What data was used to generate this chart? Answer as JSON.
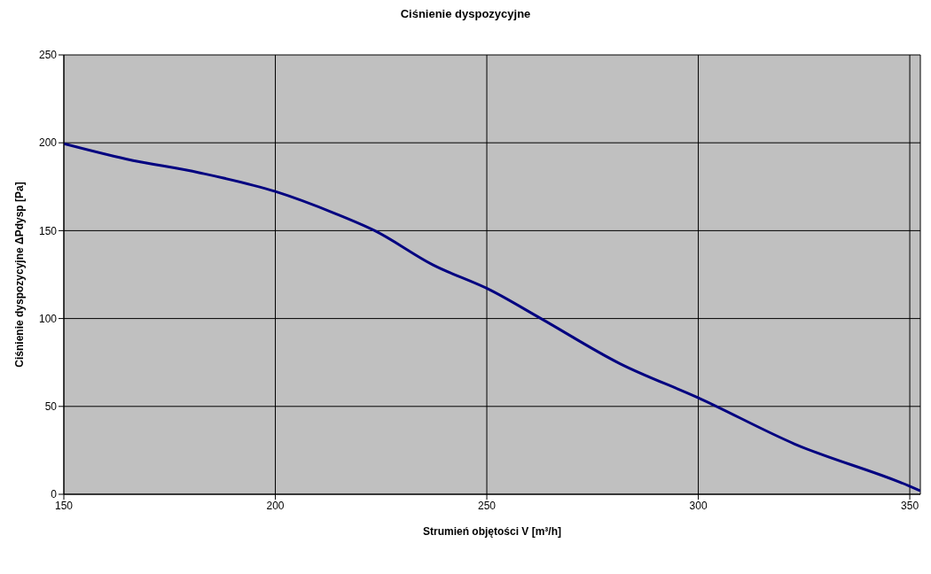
{
  "chart_data": {
    "type": "line",
    "title": "Ciśnienie dyspozycyjne",
    "xlabel": "Strumień objętości V [m³/h]",
    "ylabel": "Ciśnienie dyspozycyjne ΔPdysp [Pa]",
    "x": [
      150,
      164.7,
      182,
      200,
      213.9,
      223.5,
      237.2,
      251,
      262.8,
      281.5,
      300,
      322.8,
      350.2,
      352.5
    ],
    "series": [
      {
        "color": "#000080",
        "values": [
          199.5,
          190.8,
          183,
          172.3,
          160,
          150,
          130.6,
          116,
          100,
          74.3,
          54.9,
          28.6,
          4.4,
          2
        ]
      }
    ],
    "xlim": [
      150,
      352.5
    ],
    "xticks": [
      150,
      200,
      250,
      300,
      350
    ],
    "ylim": [
      0,
      250
    ],
    "yticks": [
      0,
      50,
      100,
      150,
      200,
      250
    ],
    "grid": true,
    "legend": false,
    "marker": "none",
    "line_style": "solid"
  }
}
